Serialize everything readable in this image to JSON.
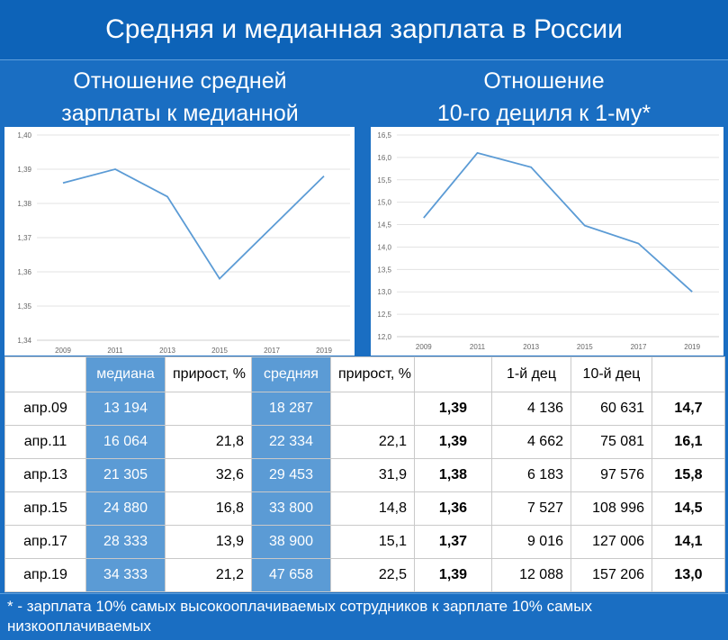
{
  "header": {
    "title": "Средняя и медианная зарплата в России"
  },
  "left_panel": {
    "title_line1": "Отношение средней",
    "title_line2": "зарплаты к медианной"
  },
  "right_panel": {
    "title_line1": "Отношение",
    "title_line2": "10-го дециля к 1-му*"
  },
  "chart_data": [
    {
      "type": "line",
      "x": [
        "2009",
        "2011",
        "2013",
        "2015",
        "2017",
        "2019"
      ],
      "series": [
        {
          "values": [
            1.386,
            1.39,
            1.382,
            1.358,
            1.373,
            1.388
          ]
        }
      ],
      "yticks": [
        "1,40",
        "1,39",
        "1,38",
        "1,37",
        "1,36",
        "1,35",
        "1,34"
      ],
      "ylim": [
        1.34,
        1.4
      ],
      "title": "",
      "xlabel": "",
      "ylabel": "",
      "grid": true,
      "color": "#5b9bd5"
    },
    {
      "type": "line",
      "x": [
        "2009",
        "2011",
        "2013",
        "2015",
        "2017",
        "2019"
      ],
      "series": [
        {
          "values": [
            14.65,
            16.1,
            15.78,
            14.48,
            14.08,
            13.0
          ]
        }
      ],
      "yticks": [
        "16,5",
        "16,0",
        "15,5",
        "15,0",
        "14,5",
        "14,0",
        "13,5",
        "13,0",
        "12,5",
        "12,0"
      ],
      "ylim": [
        12.0,
        16.5
      ],
      "title": "",
      "xlabel": "",
      "ylabel": "",
      "grid": true,
      "color": "#5b9bd5"
    }
  ],
  "table": {
    "headers": [
      "",
      "медиана",
      "прирост, %",
      "средняя",
      "прирост, %",
      "",
      "1-й дец",
      "10-й дец",
      ""
    ],
    "rows": [
      [
        "апр.09",
        "13 194",
        "",
        "18 287",
        "",
        "1,39",
        "4 136",
        "60 631",
        "14,7"
      ],
      [
        "апр.11",
        "16 064",
        "21,8",
        "22 334",
        "22,1",
        "1,39",
        "4 662",
        "75 081",
        "16,1"
      ],
      [
        "апр.13",
        "21 305",
        "32,6",
        "29 453",
        "31,9",
        "1,38",
        "6 183",
        "97 576",
        "15,8"
      ],
      [
        "апр.15",
        "24 880",
        "16,8",
        "33 800",
        "14,8",
        "1,36",
        "7 527",
        "108 996",
        "14,5"
      ],
      [
        "апр.17",
        "28 333",
        "13,9",
        "38 900",
        "15,1",
        "1,37",
        "9 016",
        "127 006",
        "14,1"
      ],
      [
        "апр.19",
        "34 333",
        "21,2",
        "47 658",
        "22,5",
        "1,39",
        "12 088",
        "157 206",
        "13,0"
      ]
    ]
  },
  "footnote": "* - зарплата 10% самых высокооплачиваемых сотрудников к зарплате 10% самых низкооплачиваемых"
}
